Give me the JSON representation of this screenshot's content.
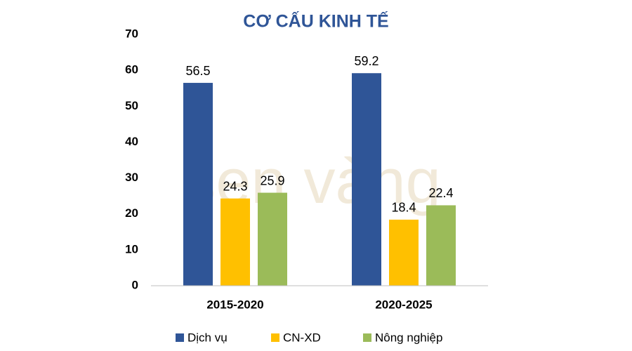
{
  "chart_data": {
    "type": "bar",
    "title": "CƠ CẤU KINH TẾ",
    "watermark": "sen vàng",
    "categories": [
      "2015-2020",
      "2020-2025"
    ],
    "series": [
      {
        "name": "Dịch vụ",
        "color": "#2f5597",
        "values": [
          56.5,
          59.2
        ]
      },
      {
        "name": "CN-XD",
        "color": "#ffc000",
        "values": [
          24.3,
          18.4
        ]
      },
      {
        "name": "Nông nghiệp",
        "color": "#9bbb59",
        "values": [
          25.9,
          22.4
        ]
      }
    ],
    "ylim": [
      0,
      70
    ],
    "yticks": [
      0,
      10,
      20,
      30,
      40,
      50,
      60,
      70
    ],
    "grid": false,
    "legend": "bottom"
  }
}
